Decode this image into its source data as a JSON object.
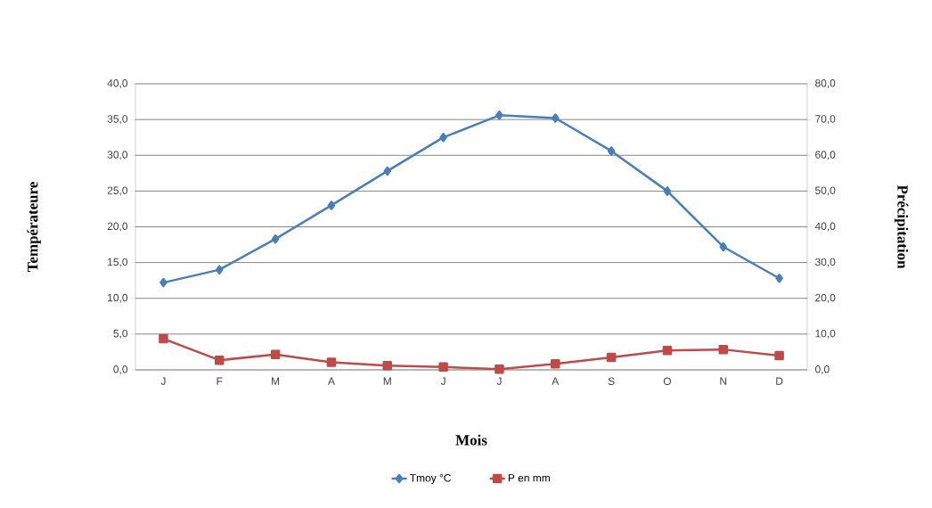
{
  "chart_data": {
    "type": "line",
    "xlabel": "Mois",
    "ylabel": "Températeure",
    "y2label": "Précipitation",
    "categories": [
      "J",
      "F",
      "M",
      "A",
      "M",
      "J",
      "J",
      "A",
      "S",
      "O",
      "N",
      "D"
    ],
    "series": [
      {
        "name": "Tmoy °C",
        "color": "#4a7ebb",
        "marker": "diamond",
        "values": [
          12.2,
          14.0,
          18.3,
          23.0,
          27.8,
          32.5,
          35.6,
          35.2,
          30.6,
          25.0,
          17.2,
          12.8
        ]
      },
      {
        "name": "P en mm",
        "color": "#be4b48",
        "marker": "square",
        "axis": "y2",
        "values": [
          8.7,
          2.7,
          4.3,
          2.1,
          1.2,
          0.8,
          0.2,
          1.7,
          3.5,
          5.4,
          5.7,
          4.0
        ]
      }
    ],
    "ylim": [
      0,
      40
    ],
    "yticks": [
      {
        "value": 0,
        "label": "0,0"
      },
      {
        "value": 5,
        "label": "5,0"
      },
      {
        "value": 10,
        "label": "10,0"
      },
      {
        "value": 15,
        "label": "15,0"
      },
      {
        "value": 20,
        "label": "20,0"
      },
      {
        "value": 25,
        "label": "25,0"
      },
      {
        "value": 30,
        "label": "30,0"
      },
      {
        "value": 35,
        "label": "35,0"
      },
      {
        "value": 40,
        "label": "40,0"
      }
    ],
    "y2lim": [
      0,
      80
    ],
    "y2ticks": [
      {
        "value": 0,
        "label": "0,0"
      },
      {
        "value": 10,
        "label": "10,0"
      },
      {
        "value": 20,
        "label": "20,0"
      },
      {
        "value": 30,
        "label": "30,0"
      },
      {
        "value": 40,
        "label": "40,0"
      },
      {
        "value": 50,
        "label": "50,0"
      },
      {
        "value": 60,
        "label": "60,0"
      },
      {
        "value": 70,
        "label": "70,0"
      },
      {
        "value": 80,
        "label": "80,0"
      }
    ],
    "grid": "y",
    "legend": "bottom"
  }
}
